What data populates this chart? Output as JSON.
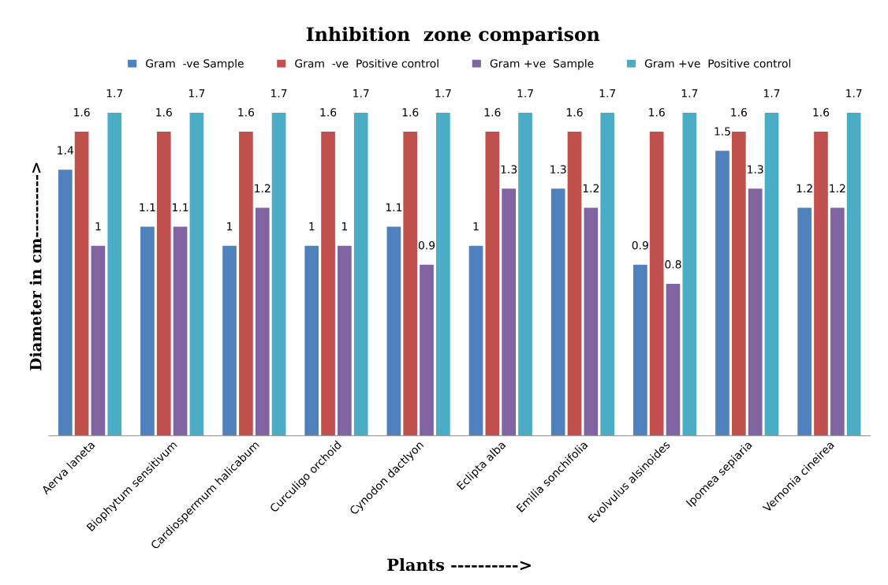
{
  "chart_data": {
    "type": "bar",
    "title": "Inhibition  zone comparison",
    "xlabel": "Plants ---------->",
    "ylabel": "Diameter in cm---------->",
    "categories": [
      "Aerva laneta",
      "Biophytum sensitivum",
      "Cardiospermum halicabum",
      "Curculigo orchoid",
      "Cynodon dactlyon",
      "Eclipta alba",
      "Emilia sonchifolia",
      "Evolvulus alsinoides",
      "Ipomea sepiaria",
      "Vernonia cineirea"
    ],
    "series": [
      {
        "name": "Gram  -ve Sample",
        "color": "#4f81bd",
        "values": [
          1.4,
          1.1,
          1,
          1,
          1.1,
          1,
          1.3,
          0.9,
          1.5,
          1.2
        ]
      },
      {
        "name": "Gram  -ve  Positive control",
        "color": "#c0504d",
        "values": [
          1.6,
          1.6,
          1.6,
          1.6,
          1.6,
          1.6,
          1.6,
          1.6,
          1.6,
          1.6
        ]
      },
      {
        "name": "Gram +ve  Sample",
        "color": "#8064a2",
        "values": [
          1,
          1.1,
          1.2,
          1,
          0.9,
          1.3,
          1.2,
          0.8,
          1.3,
          1.2
        ]
      },
      {
        "name": "Gram +ve  Positive control",
        "color": "#4bacc6",
        "values": [
          1.7,
          1.7,
          1.7,
          1.7,
          1.7,
          1.7,
          1.7,
          1.7,
          1.7,
          1.7
        ]
      }
    ],
    "data_labels": true,
    "legend": "top",
    "grid": false,
    "tick_labels": "x"
  }
}
